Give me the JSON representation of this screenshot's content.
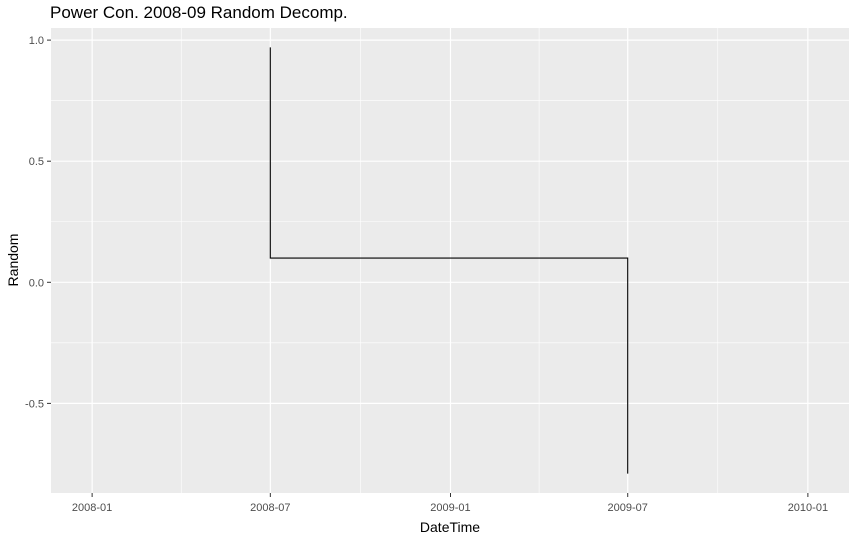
{
  "chart_data": {
    "type": "line",
    "title": "Power Con. 2008-09 Random Decomp.",
    "xlabel": "DateTime",
    "ylabel": "Random",
    "x_ticks": [
      "2008-01",
      "2008-07",
      "2009-01",
      "2009-07",
      "2010-01"
    ],
    "y_ticks": [
      "-0.5",
      "0.0",
      "0.5",
      "1.0"
    ],
    "y_tick_values": [
      -0.5,
      0.0,
      0.5,
      1.0
    ],
    "xlim": [
      "2007-11-20",
      "2010-02-12"
    ],
    "ylim": [
      -0.87,
      1.05
    ],
    "grid": true,
    "background": "#ebebeb",
    "grid_color": "#ffffff",
    "line_color": "#000000",
    "series": [
      {
        "x": [
          "2008-07-01",
          "2008-07-01",
          "2009-07-01",
          "2009-07-01"
        ],
        "y": [
          0.97,
          0.1,
          0.1,
          -0.79
        ]
      }
    ]
  }
}
